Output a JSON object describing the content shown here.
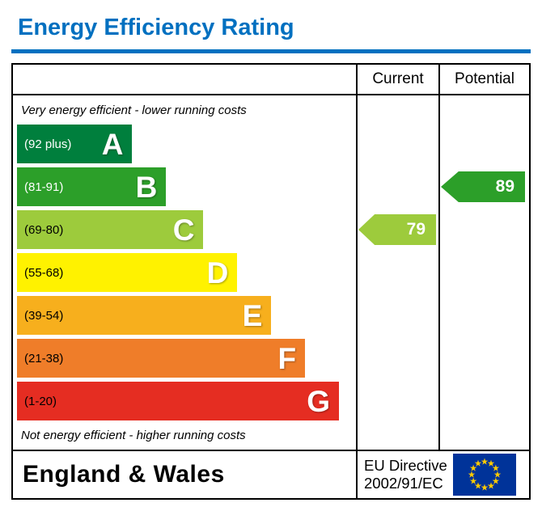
{
  "accent_color": "#0070c0",
  "header": {
    "title": "Energy Efficiency Rating"
  },
  "table": {
    "columns": {
      "current": "Current",
      "potential": "Potential"
    },
    "top_note": "Very energy efficient - lower running costs",
    "bottom_note": "Not energy efficient - higher running costs"
  },
  "footer": {
    "region": "England & Wales",
    "directive": {
      "line1": "EU Directive",
      "line2": "2002/91/EC"
    },
    "eu_flag": {
      "icon": "eu-flag-icon",
      "background": "#003399",
      "star_color": "#ffcc00"
    }
  },
  "chart_data": {
    "type": "bar",
    "subtype": "energy-efficiency-rating",
    "title": "Energy Efficiency Rating",
    "bands": [
      {
        "letter": "A",
        "range": "(92 plus)",
        "min": 92,
        "max": 100,
        "color": "#007f3d",
        "text_color": "#ffffff",
        "width_pct": 34
      },
      {
        "letter": "B",
        "range": "(81-91)",
        "min": 81,
        "max": 91,
        "color": "#2c9f29",
        "text_color": "#ffffff",
        "width_pct": 44
      },
      {
        "letter": "C",
        "range": "(69-80)",
        "min": 69,
        "max": 80,
        "color": "#9dcb3c",
        "text_color": "#000000",
        "width_pct": 55
      },
      {
        "letter": "D",
        "range": "(55-68)",
        "min": 55,
        "max": 68,
        "color": "#fff200",
        "text_color": "#000000",
        "width_pct": 65
      },
      {
        "letter": "E",
        "range": "(39-54)",
        "min": 39,
        "max": 54,
        "color": "#f7af1d",
        "text_color": "#000000",
        "width_pct": 75
      },
      {
        "letter": "F",
        "range": "(21-38)",
        "min": 21,
        "max": 38,
        "color": "#ef7d29",
        "text_color": "#000000",
        "width_pct": 85
      },
      {
        "letter": "G",
        "range": "(1-20)",
        "min": 1,
        "max": 20,
        "color": "#e52d22",
        "text_color": "#000000",
        "width_pct": 95
      }
    ],
    "current": {
      "label": "Current",
      "value": 79,
      "band": "C",
      "band_index": 2,
      "color": "#9dcb3c"
    },
    "potential": {
      "label": "Potential",
      "value": 89,
      "band": "B",
      "band_index": 1,
      "color": "#2c9f29"
    }
  }
}
